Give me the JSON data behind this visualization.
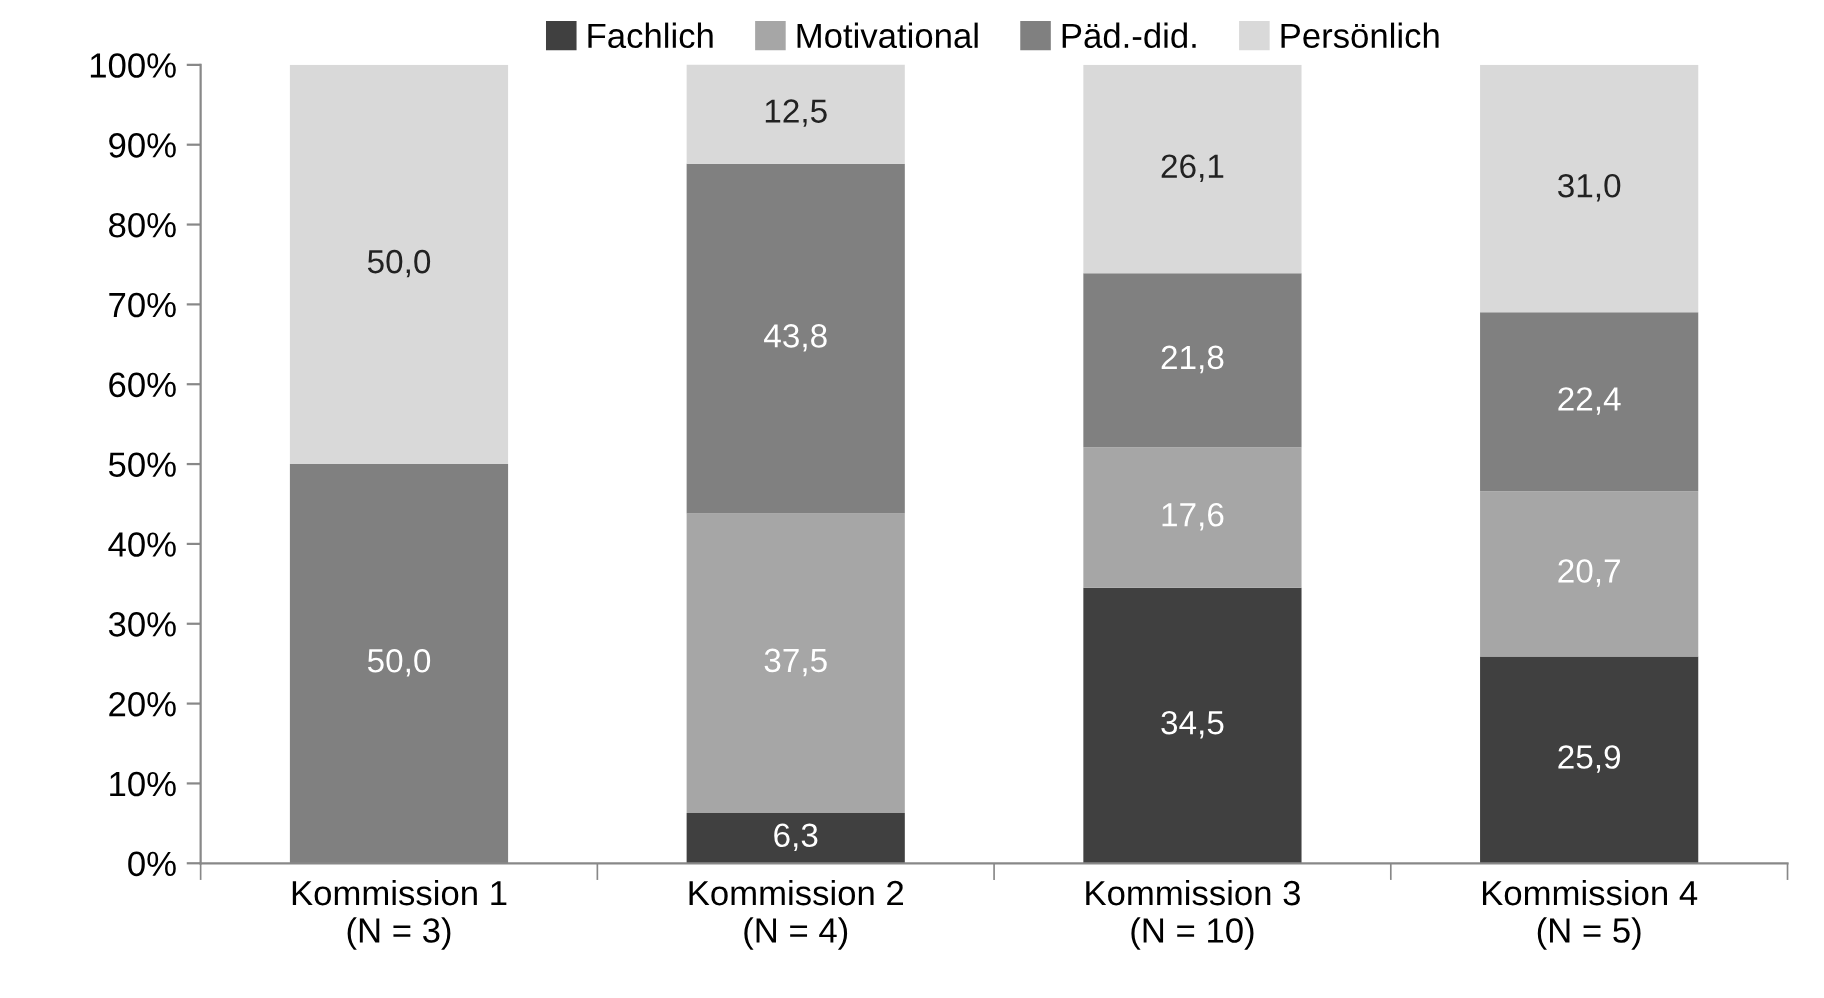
{
  "chart_data": {
    "type": "bar",
    "stacked": true,
    "categories": [
      "Kommission 1\n(N = 3)",
      "Kommission 2\n(N = 4)",
      "Kommission 3\n(N = 10)",
      "Kommission 4\n(N = 5)"
    ],
    "series": [
      {
        "name": "Fachlich",
        "color": "#404040",
        "values": [
          0,
          6.3,
          34.5,
          25.9
        ],
        "value_labels": [
          null,
          "6,3",
          "34,5",
          "25,9"
        ]
      },
      {
        "name": "Motivational",
        "color": "#a6a6a6",
        "values": [
          0,
          37.5,
          17.6,
          20.7
        ],
        "value_labels": [
          null,
          "37,5",
          "17,6",
          "20,7"
        ]
      },
      {
        "name": "Päd.-did.",
        "color": "#808080",
        "values": [
          50.0,
          43.8,
          21.8,
          22.4
        ],
        "value_labels": [
          "50,0",
          "43,8",
          "21,8",
          "22,4"
        ]
      },
      {
        "name": "Persönlich",
        "color": "#d9d9d9",
        "values": [
          50.0,
          12.5,
          26.1,
          31.0
        ],
        "value_labels": [
          "50,0",
          "12,5",
          "26,1",
          "31,0"
        ]
      }
    ],
    "ylim": [
      0,
      100
    ],
    "yticks": [
      {
        "value": 0,
        "label": "0%"
      },
      {
        "value": 10,
        "label": "10%"
      },
      {
        "value": 20,
        "label": "20%"
      },
      {
        "value": 30,
        "label": "30%"
      },
      {
        "value": 40,
        "label": "40%"
      },
      {
        "value": 50,
        "label": "50%"
      },
      {
        "value": 60,
        "label": "60%"
      },
      {
        "value": 70,
        "label": "70%"
      },
      {
        "value": 80,
        "label": "80%"
      },
      {
        "value": 90,
        "label": "90%"
      },
      {
        "value": 100,
        "label": "100%"
      }
    ],
    "grid": false,
    "legend": "top"
  }
}
